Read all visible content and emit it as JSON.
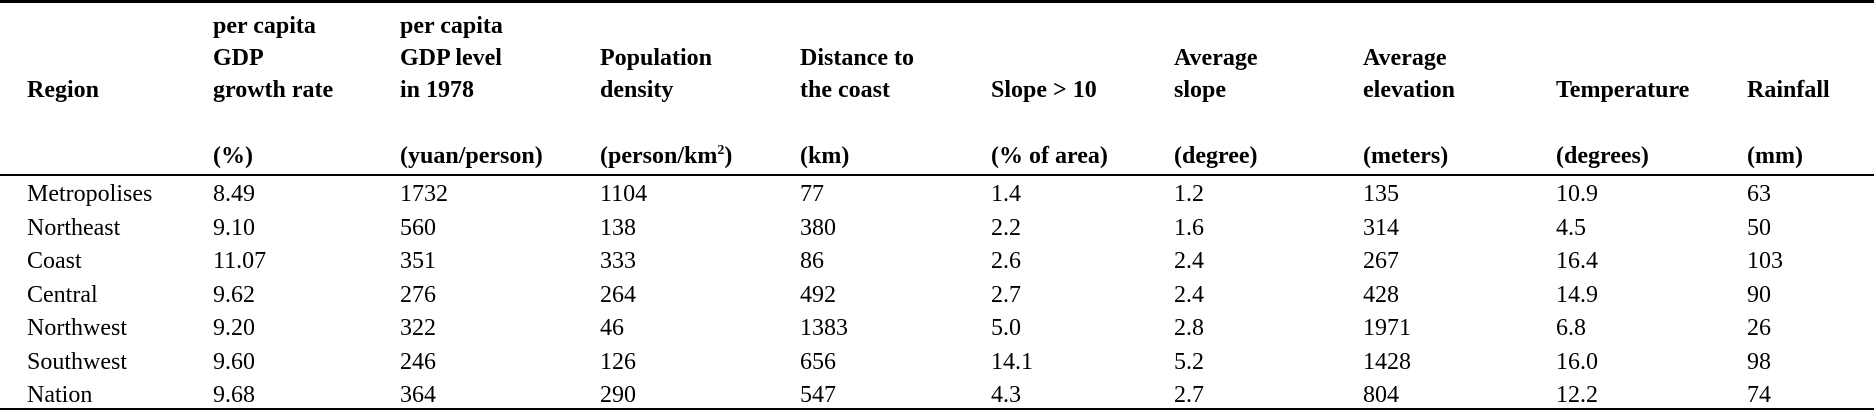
{
  "table": {
    "columns": [
      {
        "header_lines": [
          "Region"
        ],
        "unit": ""
      },
      {
        "header_lines": [
          "per capita",
          "GDP",
          "growth rate"
        ],
        "unit": "(%)"
      },
      {
        "header_lines": [
          "per capita",
          "GDP level",
          "in 1978"
        ],
        "unit": "(yuan/person)"
      },
      {
        "header_lines": [
          "Population",
          "density"
        ],
        "unit_main": "(person/km",
        "unit_sup": "2",
        "unit_tail": ")"
      },
      {
        "header_lines": [
          "Distance to",
          "the coast"
        ],
        "unit": "(km)"
      },
      {
        "header_lines": [
          "Slope > 10"
        ],
        "unit": "(% of area)"
      },
      {
        "header_lines": [
          "Average",
          "slope"
        ],
        "unit": "(degree)"
      },
      {
        "header_lines": [
          "Average",
          "elevation"
        ],
        "unit": "(meters)"
      },
      {
        "header_lines": [
          "Temperature"
        ],
        "unit": "(degrees)"
      },
      {
        "header_lines": [
          "Rainfall"
        ],
        "unit": "(mm)"
      }
    ],
    "rows": [
      [
        "Metropolises",
        "8.49",
        "1732",
        "1104",
        "77",
        "1.4",
        "1.2",
        "135",
        "10.9",
        "63"
      ],
      [
        "Northeast",
        "9.10",
        "560",
        "138",
        "380",
        "2.2",
        "1.6",
        "314",
        "4.5",
        "50"
      ],
      [
        "Coast",
        "11.07",
        "351",
        "333",
        "86",
        "2.6",
        "2.4",
        "267",
        "16.4",
        "103"
      ],
      [
        "Central",
        "9.62",
        "276",
        "264",
        "492",
        "2.7",
        "2.4",
        "428",
        "14.9",
        "90"
      ],
      [
        "Northwest",
        "9.20",
        "322",
        "46",
        "1383",
        "5.0",
        "2.8",
        "1971",
        "6.8",
        "26"
      ],
      [
        "Southwest",
        "9.60",
        "246",
        "126",
        "656",
        "14.1",
        "5.2",
        "1428",
        "16.0",
        "98"
      ],
      [
        "Nation",
        "9.68",
        "364",
        "290",
        "547",
        "4.3",
        "2.7",
        "804",
        "12.2",
        "74"
      ]
    ]
  }
}
